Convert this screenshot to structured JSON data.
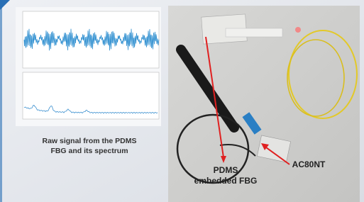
{
  "left_panel": {
    "caption": [
      "Raw signal from the PDMS",
      "FBG and its spectrum"
    ]
  },
  "photo": {
    "labels": {
      "fbg": [
        "PDMS",
        "embedded FBG"
      ],
      "sensor": "AC80NT"
    }
  }
}
